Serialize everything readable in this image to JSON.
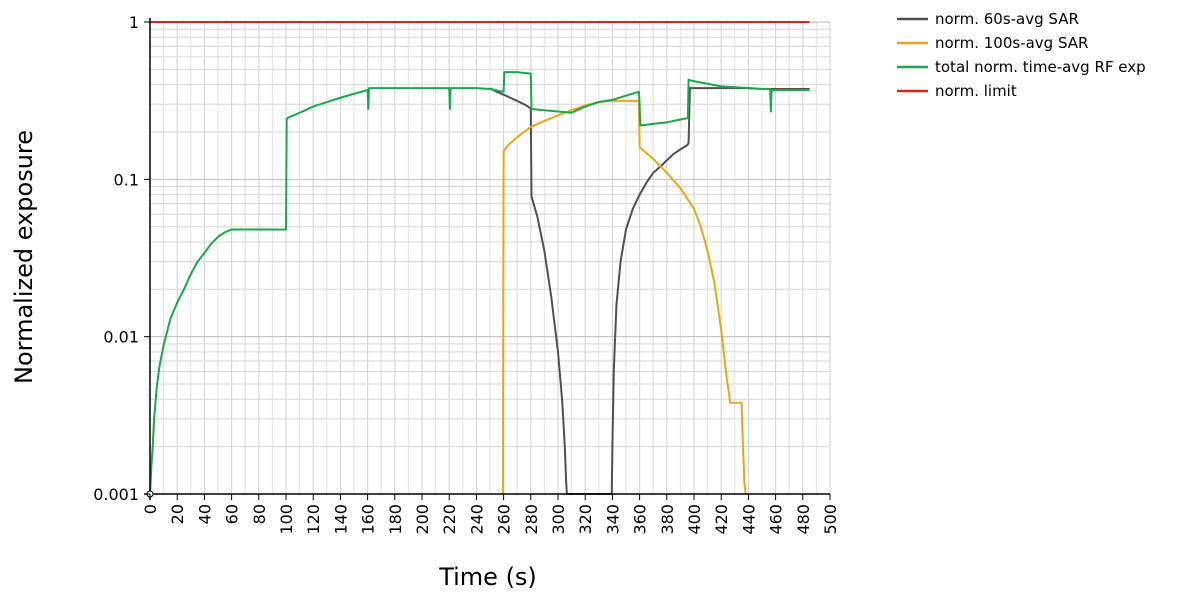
{
  "chart_data": {
    "type": "line",
    "xlabel": "Time (s)",
    "ylabel": "Normalized exposure",
    "xlim": [
      0,
      500
    ],
    "ylim": [
      0.001,
      1
    ],
    "yscale": "log",
    "grid": true,
    "legend_position": "top-right outside",
    "x_ticks": [
      "0",
      "20",
      "40",
      "60",
      "80",
      "100",
      "120",
      "140",
      "160",
      "180",
      "200",
      "220",
      "240",
      "260",
      "280",
      "300",
      "320",
      "340",
      "360",
      "380",
      "400",
      "420",
      "440",
      "460",
      "480",
      "500"
    ],
    "y_ticks": [
      "0.001",
      "0.01",
      "0.1",
      "1"
    ],
    "series": [
      {
        "name": "norm. 60s-avg SAR",
        "color": "#505050",
        "x": [
          250,
          255,
          260,
          265,
          270,
          275,
          278,
          280,
          280.5,
          285,
          290,
          295,
          300,
          303,
          305,
          306,
          306.5,
          339.5,
          340,
          341,
          343,
          346,
          350,
          355,
          360,
          365,
          370,
          375,
          380,
          385,
          390,
          395,
          396,
          397,
          400,
          410,
          420,
          430,
          440,
          450,
          460,
          470,
          485
        ],
        "y": [
          0.38,
          0.36,
          0.345,
          0.33,
          0.315,
          0.3,
          0.29,
          0.28,
          0.078,
          0.057,
          0.035,
          0.018,
          0.008,
          0.004,
          0.002,
          0.0012,
          0.001,
          0.001,
          0.002,
          0.006,
          0.016,
          0.03,
          0.048,
          0.065,
          0.08,
          0.095,
          0.11,
          0.12,
          0.132,
          0.145,
          0.155,
          0.165,
          0.17,
          0.38,
          0.38,
          0.38,
          0.38,
          0.38,
          0.38,
          0.375,
          0.375,
          0.375,
          0.375
        ]
      },
      {
        "name": "norm. 100s-avg SAR",
        "color": "#e6a817",
        "x": [
          259.5,
          260,
          262,
          265,
          270,
          275,
          280,
          290,
          300,
          310,
          320,
          330,
          340,
          350,
          359.5,
          360,
          370,
          380,
          390,
          400,
          405,
          410,
          415,
          420,
          424,
          426,
          426.5,
          430,
          434,
          435,
          436,
          437,
          438
        ],
        "y": [
          0.001,
          0.15,
          0.16,
          0.17,
          0.185,
          0.2,
          0.215,
          0.235,
          0.255,
          0.275,
          0.295,
          0.31,
          0.315,
          0.315,
          0.315,
          0.16,
          0.135,
          0.11,
          0.088,
          0.065,
          0.05,
          0.035,
          0.022,
          0.011,
          0.0055,
          0.0042,
          0.0038,
          0.0038,
          0.0038,
          0.0038,
          0.002,
          0.0012,
          0.001
        ]
      },
      {
        "name": "total norm. time-avg RF exp",
        "color": "#1aa84a",
        "x": [
          0,
          1,
          2,
          3,
          5,
          7,
          10,
          15,
          20,
          25,
          30,
          35,
          40,
          45,
          50,
          55,
          60,
          70,
          80,
          90,
          100,
          100.5,
          101,
          110,
          120,
          130,
          140,
          150,
          160,
          160.5,
          161,
          161.5,
          170,
          180,
          190,
          200,
          210,
          220,
          220.5,
          221,
          221.5,
          230,
          240,
          250,
          260,
          260.5,
          270,
          280,
          280.5,
          290,
          300,
          310,
          320,
          330,
          340,
          350,
          359.5,
          360,
          360.5,
          370,
          380,
          390,
          395.5,
          396,
          400,
          410,
          420,
          430,
          440,
          450,
          456,
          456.5,
          457,
          457.5,
          465,
          475,
          485
        ],
        "y": [
          0.001,
          0.0015,
          0.002,
          0.003,
          0.0048,
          0.0065,
          0.0088,
          0.013,
          0.0165,
          0.02,
          0.025,
          0.03,
          0.034,
          0.039,
          0.043,
          0.046,
          0.048,
          0.048,
          0.048,
          0.048,
          0.048,
          0.24,
          0.245,
          0.265,
          0.29,
          0.31,
          0.33,
          0.35,
          0.37,
          0.28,
          0.38,
          0.38,
          0.38,
          0.38,
          0.38,
          0.38,
          0.38,
          0.38,
          0.28,
          0.38,
          0.38,
          0.38,
          0.38,
          0.375,
          0.36,
          0.48,
          0.48,
          0.47,
          0.28,
          0.275,
          0.27,
          0.265,
          0.29,
          0.31,
          0.32,
          0.34,
          0.36,
          0.3,
          0.22,
          0.225,
          0.23,
          0.24,
          0.245,
          0.43,
          0.42,
          0.405,
          0.39,
          0.385,
          0.38,
          0.375,
          0.375,
          0.27,
          0.36,
          0.37,
          0.37,
          0.37,
          0.37
        ]
      },
      {
        "name": "norm. limit",
        "color": "#e0201b",
        "x": [
          0,
          485
        ],
        "y": [
          1,
          1
        ]
      }
    ]
  }
}
